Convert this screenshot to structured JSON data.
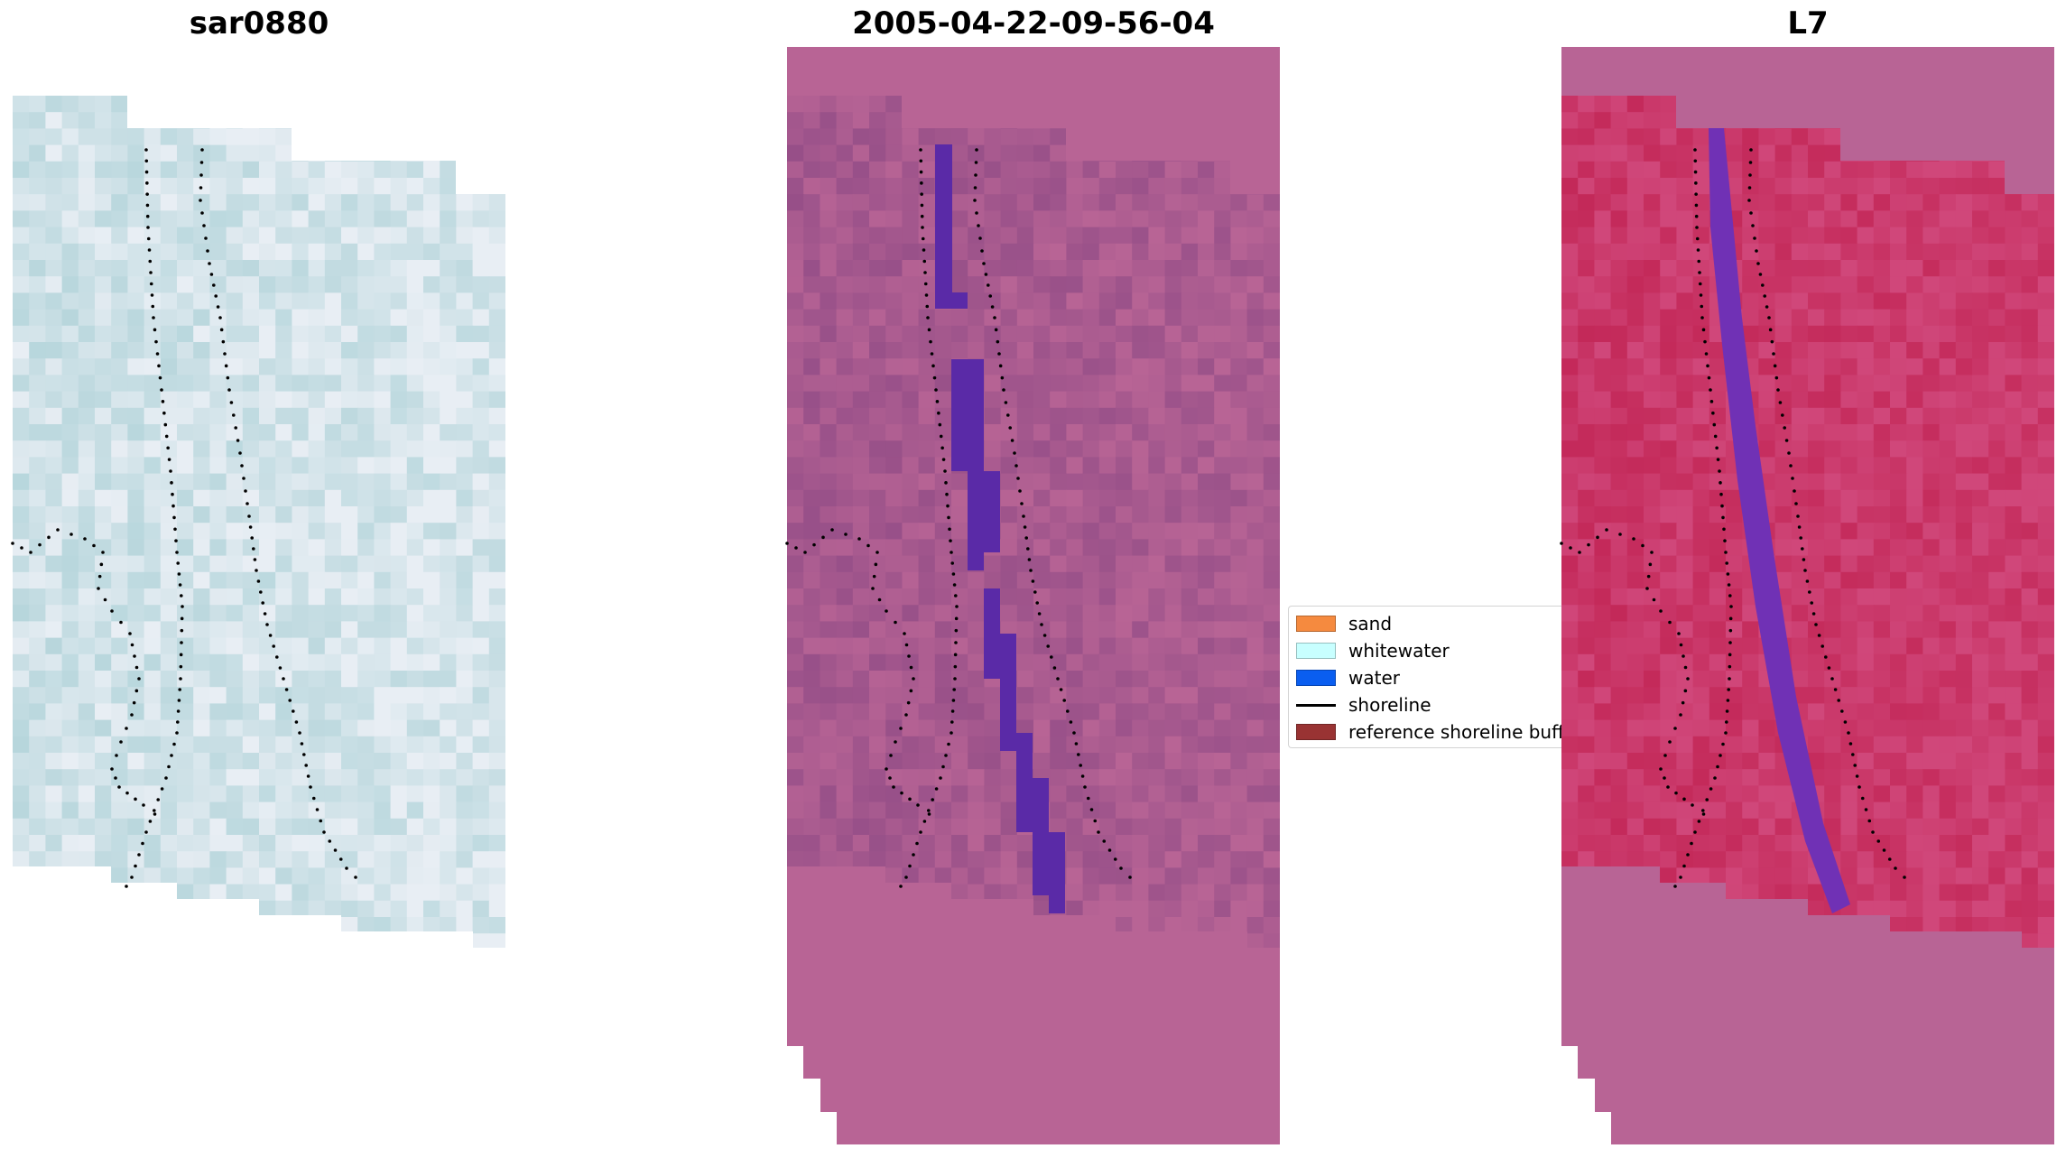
{
  "chart_data": [
    {
      "type": "image",
      "title": "sar0880",
      "rendering": "rgb",
      "shoreline_dotted": true,
      "axis": "off"
    },
    {
      "type": "image",
      "title": "2005-04-22-09-56-04",
      "rendering": "classified-overlay",
      "shoreline_dotted": true,
      "axis": "off"
    },
    {
      "type": "image",
      "title": "L7",
      "rendering": "index",
      "shoreline_dotted": true,
      "axis": "off"
    }
  ],
  "legend": {
    "placement": "center",
    "items": [
      {
        "label": "sand",
        "color": "#f58a3f",
        "kind": "patch"
      },
      {
        "label": "whitewater",
        "color": "#c8ffff",
        "kind": "patch"
      },
      {
        "label": "water",
        "color": "#0a5ef0",
        "kind": "patch"
      },
      {
        "label": "shoreline",
        "color": "#000000",
        "kind": "line"
      },
      {
        "label": "reference shoreline buffer",
        "color": "#993333",
        "kind": "patch"
      }
    ]
  },
  "colors": {
    "rgb_base": "#b7d6dc",
    "overlay_base": "#b86495",
    "overlay_dark": "#964f88",
    "water_class": "#5a2aa7",
    "index_base": "#c32858",
    "index_purple": "#7031b5"
  }
}
